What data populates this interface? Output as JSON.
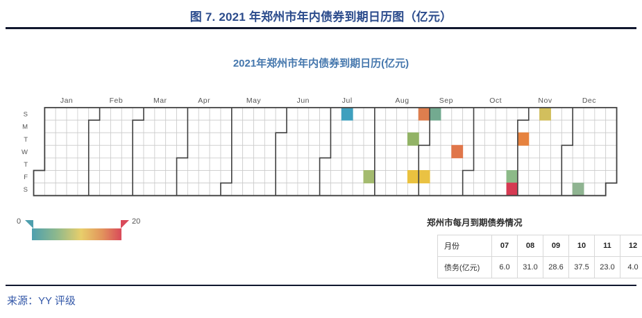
{
  "figure": {
    "title": "图 7. 2021 年郑州市年内债券到期日历图（亿元）",
    "source": "来源：YY 评级"
  },
  "chart_data": {
    "type": "heatmap",
    "subtype": "calendar-year",
    "title": "2021年郑州市年内债券到期日历(亿元)",
    "year": 2021,
    "weekday_labels": [
      "S",
      "M",
      "T",
      "W",
      "T",
      "F",
      "S"
    ],
    "month_labels": [
      "Jan",
      "Feb",
      "Mar",
      "Apr",
      "May",
      "Jun",
      "Jul",
      "Aug",
      "Sep",
      "Oct",
      "Nov",
      "Dec"
    ],
    "colorscale": {
      "min": 0,
      "max": 20,
      "min_color": "#4E9FAE",
      "max_color": "#D94A5A",
      "gradient_stops": [
        "#4E9FAE",
        "#8FB98C",
        "#E8CE6B",
        "#E2955C",
        "#D94A5A"
      ]
    },
    "legend": {
      "min_label": "0",
      "max_label": "20"
    },
    "cells": [
      {
        "date": "2021-07-11",
        "weekday": "Sun",
        "color": "#3FA0BE",
        "value_est": 2
      },
      {
        "date": "2021-07-30",
        "weekday": "Fri",
        "color": "#A4BB6F",
        "value_est": 4
      },
      {
        "date": "2021-08-24",
        "weekday": "Tue",
        "color": "#92B366",
        "value_est": 7
      },
      {
        "date": "2021-08-27",
        "weekday": "Fri",
        "color": "#EAC23F",
        "value_est": 10
      },
      {
        "date": "2021-08-29",
        "weekday": "Sun",
        "color": "#DE7E4E",
        "value_est": 14
      },
      {
        "date": "2021-09-03",
        "weekday": "Fri",
        "color": "#EAC243",
        "value_est": 10
      },
      {
        "date": "2021-09-05",
        "weekday": "Sun",
        "color": "#73AA90",
        "value_est": 4
      },
      {
        "date": "2021-09-22",
        "weekday": "Wed",
        "color": "#E0764A",
        "value_est": 14.6
      },
      {
        "date": "2021-10-29",
        "weekday": "Fri",
        "color": "#8CBA88",
        "value_est": 6
      },
      {
        "date": "2021-10-30",
        "weekday": "Sat",
        "color": "#D63A52",
        "value_est": 31.5
      },
      {
        "date": "2021-11-02",
        "weekday": "Tue",
        "color": "#E6823F",
        "value_est": 15
      },
      {
        "date": "2021-11-14",
        "weekday": "Sun",
        "color": "#D2BF5D",
        "value_est": 8
      },
      {
        "date": "2021-12-11",
        "weekday": "Sat",
        "color": "#8FB491",
        "value_est": 4
      }
    ]
  },
  "summary_table": {
    "title": "郑州市每月到期债券情况",
    "columns": [
      "月份",
      "07",
      "08",
      "09",
      "10",
      "11",
      "12"
    ],
    "rows": [
      [
        "债务(亿元)",
        "6.0",
        "31.0",
        "28.6",
        "37.5",
        "23.0",
        "4.0"
      ]
    ]
  }
}
